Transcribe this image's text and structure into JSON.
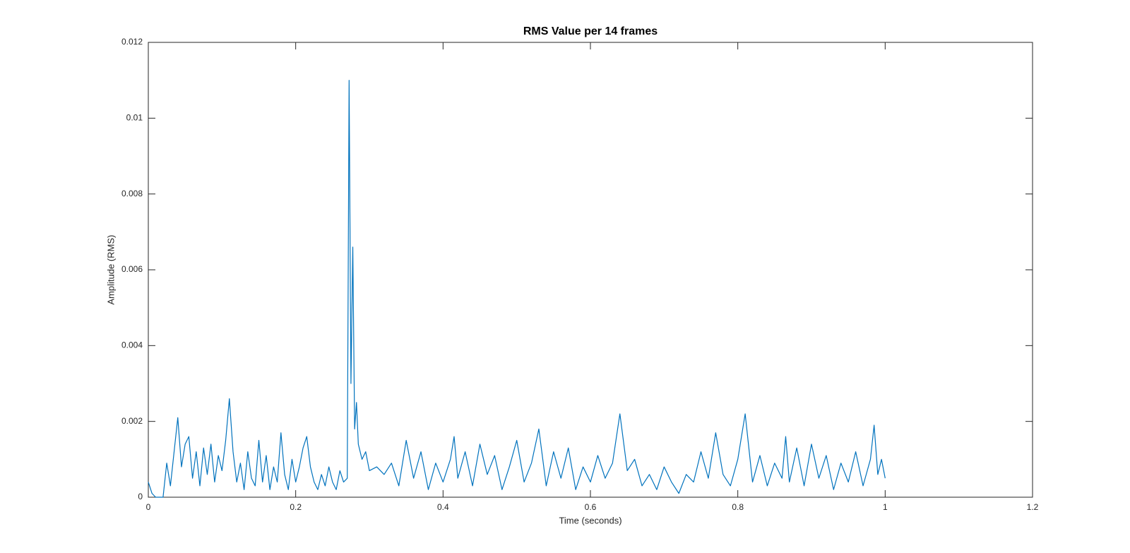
{
  "chart_data": {
    "type": "line",
    "title": "RMS Value per 14 frames",
    "xlabel": "Time (seconds)",
    "ylabel": "Amplitude (RMS)",
    "color": "#0072bd",
    "x": [
      0,
      0.005,
      0.01,
      0.015,
      0.02,
      0.025,
      0.03,
      0.035,
      0.04,
      0.045,
      0.05,
      0.055,
      0.06,
      0.065,
      0.07,
      0.075,
      0.08,
      0.085,
      0.09,
      0.095,
      0.1,
      0.105,
      0.11,
      0.115,
      0.12,
      0.125,
      0.13,
      0.135,
      0.14,
      0.145,
      0.15,
      0.155,
      0.16,
      0.165,
      0.17,
      0.175,
      0.18,
      0.185,
      0.19,
      0.195,
      0.2,
      0.205,
      0.21,
      0.215,
      0.22,
      0.225,
      0.23,
      0.235,
      0.24,
      0.245,
      0.25,
      0.255,
      0.26,
      0.265,
      0.27,
      0.2725,
      0.275,
      0.2775,
      0.28,
      0.2825,
      0.285,
      0.29,
      0.295,
      0.3,
      0.31,
      0.32,
      0.33,
      0.34,
      0.35,
      0.36,
      0.37,
      0.38,
      0.39,
      0.4,
      0.41,
      0.415,
      0.42,
      0.43,
      0.44,
      0.45,
      0.46,
      0.47,
      0.48,
      0.49,
      0.5,
      0.51,
      0.52,
      0.53,
      0.54,
      0.55,
      0.56,
      0.57,
      0.58,
      0.59,
      0.6,
      0.61,
      0.62,
      0.63,
      0.64,
      0.65,
      0.66,
      0.67,
      0.68,
      0.69,
      0.7,
      0.71,
      0.72,
      0.73,
      0.74,
      0.75,
      0.76,
      0.77,
      0.78,
      0.79,
      0.8,
      0.81,
      0.82,
      0.83,
      0.84,
      0.85,
      0.86,
      0.865,
      0.87,
      0.88,
      0.89,
      0.9,
      0.91,
      0.92,
      0.93,
      0.94,
      0.95,
      0.96,
      0.97,
      0.98,
      0.985,
      0.99,
      0.995,
      1.0
    ],
    "values": [
      0.0004,
      0.0001,
      0,
      0,
      0,
      0.0009,
      0.0003,
      0.0012,
      0.0021,
      0.0008,
      0.0014,
      0.0016,
      0.0005,
      0.0012,
      0.0003,
      0.0013,
      0.0006,
      0.0014,
      0.0004,
      0.0011,
      0.0007,
      0.0015,
      0.0026,
      0.0012,
      0.0004,
      0.0009,
      0.0002,
      0.0012,
      0.0005,
      0.0003,
      0.0015,
      0.0004,
      0.0011,
      0.0002,
      0.0008,
      0.0004,
      0.0017,
      0.0006,
      0.0002,
      0.001,
      0.0004,
      0.0008,
      0.0013,
      0.0016,
      0.0008,
      0.0004,
      0.0002,
      0.0006,
      0.0003,
      0.0008,
      0.0004,
      0.0002,
      0.0007,
      0.0004,
      0.0005,
      0.011,
      0.003,
      0.0066,
      0.0018,
      0.0025,
      0.0014,
      0.001,
      0.0012,
      0.0007,
      0.0008,
      0.0006,
      0.0009,
      0.0003,
      0.0015,
      0.0005,
      0.0012,
      0.0002,
      0.0009,
      0.0004,
      0.001,
      0.0016,
      0.0005,
      0.0012,
      0.0003,
      0.0014,
      0.0006,
      0.0011,
      0.0002,
      0.0008,
      0.0015,
      0.0004,
      0.0009,
      0.0018,
      0.0003,
      0.0012,
      0.0005,
      0.0013,
      0.0002,
      0.0008,
      0.0004,
      0.0011,
      0.0005,
      0.0009,
      0.0022,
      0.0007,
      0.001,
      0.0003,
      0.0006,
      0.0002,
      0.0008,
      0.0004,
      0.0001,
      0.0006,
      0.0004,
      0.0012,
      0.0005,
      0.0017,
      0.0006,
      0.0003,
      0.001,
      0.0022,
      0.0004,
      0.0011,
      0.0003,
      0.0009,
      0.0005,
      0.0016,
      0.0004,
      0.0013,
      0.0003,
      0.0014,
      0.0005,
      0.0011,
      0.0002,
      0.0009,
      0.0004,
      0.0012,
      0.0003,
      0.001,
      0.0019,
      0.0006,
      0.001,
      0.0005
    ],
    "xlim": [
      0,
      1.2
    ],
    "xticks": [
      0,
      0.2,
      0.4,
      0.6,
      0.8,
      1,
      1.2
    ],
    "ylim": [
      0,
      0.012
    ],
    "yticks": [
      0,
      0.002,
      0.004,
      0.006,
      0.008,
      0.01,
      0.012
    ]
  }
}
